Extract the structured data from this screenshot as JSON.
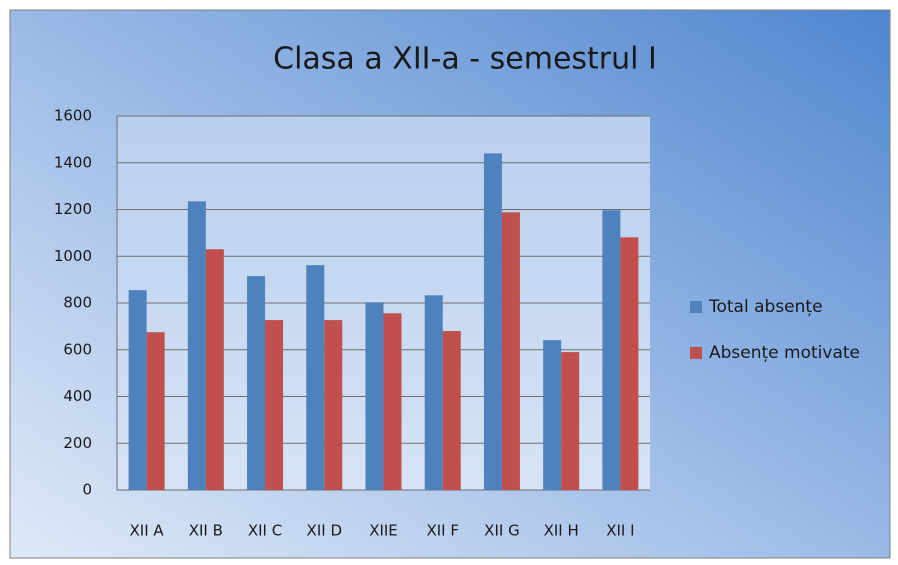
{
  "chart_data": {
    "type": "bar",
    "title": "Clasa a XII-a - semestrul I",
    "categories": [
      "XII A",
      "XII B",
      "XII C",
      "XII D",
      "XIIE",
      "XII F",
      "XII G",
      "XII H",
      "XII I"
    ],
    "series": [
      {
        "name": "Total absențe",
        "color": "#4f81bd",
        "values": [
          855,
          1235,
          915,
          962,
          803,
          833,
          1440,
          641,
          1197
        ]
      },
      {
        "name": "Absențe motivate",
        "color": "#c0504d",
        "values": [
          675,
          1030,
          727,
          727,
          756,
          680,
          1188,
          590,
          1081
        ]
      }
    ],
    "ylim": [
      0,
      1600
    ],
    "yticks": [
      0,
      200,
      400,
      600,
      800,
      1000,
      1200,
      1400,
      1600
    ],
    "grid": true,
    "legend": "right"
  }
}
